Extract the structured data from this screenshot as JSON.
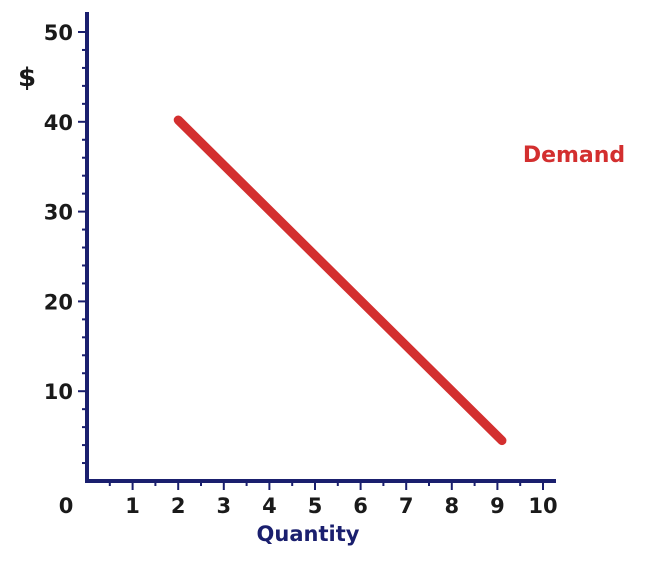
{
  "chart_data": {
    "type": "line",
    "title": "",
    "xlabel": "Quantity",
    "ylabel": "$",
    "xlim": [
      0,
      10
    ],
    "ylim": [
      0,
      50
    ],
    "x_ticks": [
      "1",
      "2",
      "3",
      "4",
      "5",
      "6",
      "7",
      "8",
      "9",
      "10"
    ],
    "y_ticks": [
      "10",
      "20",
      "30",
      "40",
      "50"
    ],
    "origin_label": "0",
    "grid": false,
    "legend": "none",
    "series": [
      {
        "name": "Demand",
        "x": [
          2,
          9.1
        ],
        "y": [
          40.2,
          4.5
        ],
        "color": "#d32f2f"
      }
    ],
    "axis_color": "#1a1f6e",
    "xlabel_color": "#1a1f6e",
    "ylabel_color": "#1a1a1a",
    "series_label_color": "#d32f2f"
  }
}
